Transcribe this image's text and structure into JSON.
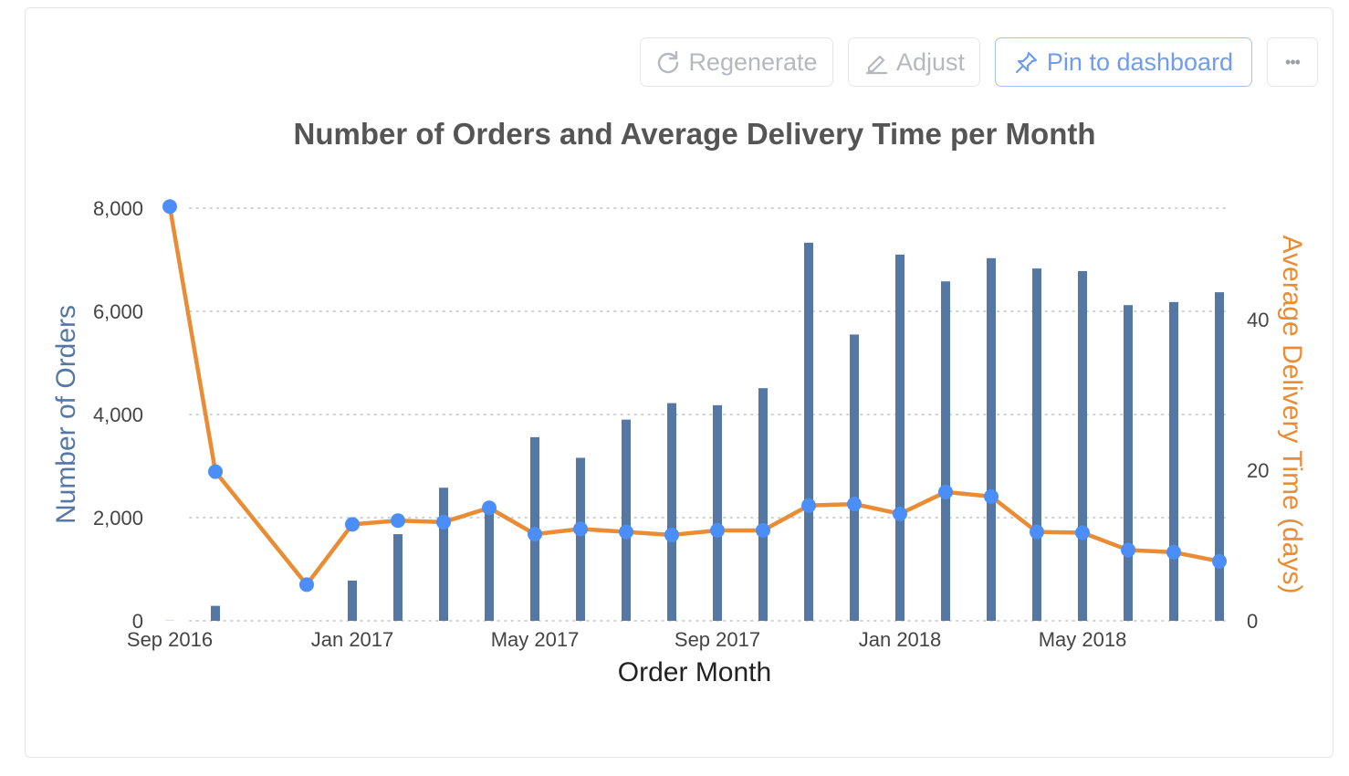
{
  "toolbar": {
    "regenerate_label": "Regenerate",
    "adjust_label": "Adjust",
    "pin_label": "Pin to dashboard",
    "more_label": "•••"
  },
  "colors": {
    "bars": "#5577a4",
    "line": "#e98c33",
    "points": "#4c8ef7",
    "left_axis_title": "#5577a4",
    "right_axis_title": "#e98c33",
    "title": "#555555",
    "grid": "#cfd3d8",
    "tick": "#444444"
  },
  "chart_data": {
    "type": "bar",
    "title": "Number of Orders and Average Delivery Time per Month",
    "xlabel": "Order Month",
    "ylabel": "Number of Orders",
    "y2label": "Average Delivery Time (days)",
    "ylim": [
      0,
      8000
    ],
    "y2lim": [
      0,
      55
    ],
    "grid": true,
    "x_tick_labels": [
      "Sep 2016",
      "Jan 2017",
      "May 2017",
      "Sep 2017",
      "Jan 2018",
      "May 2018"
    ],
    "y_tick_labels": [
      "0",
      "2,000",
      "4,000",
      "6,000",
      "8,000"
    ],
    "y2_tick_labels": [
      "0",
      "20",
      "40"
    ],
    "categories": [
      "2016-09",
      "2016-10",
      "2016-11",
      "2016-12",
      "2017-01",
      "2017-02",
      "2017-03",
      "2017-04",
      "2017-05",
      "2017-06",
      "2017-07",
      "2017-08",
      "2017-09",
      "2017-10",
      "2017-11",
      "2017-12",
      "2018-01",
      "2018-02",
      "2018-03",
      "2018-04",
      "2018-05",
      "2018-06",
      "2018-07",
      "2018-08"
    ],
    "series": [
      {
        "name": "Number of Orders",
        "type": "bar",
        "axis": "left",
        "values": [
          4,
          290,
          null,
          1,
          780,
          1680,
          2580,
          2300,
          3560,
          3160,
          3900,
          4220,
          4180,
          4510,
          7330,
          5550,
          7100,
          6580,
          7030,
          6830,
          6780,
          6120,
          6180,
          6370
        ]
      },
      {
        "name": "Average Delivery Time (days)",
        "type": "line",
        "axis": "right",
        "values": [
          55,
          19.8,
          null,
          4.8,
          12.8,
          13.3,
          13.1,
          15.0,
          11.5,
          12.2,
          11.8,
          11.4,
          12.0,
          12.0,
          15.3,
          15.5,
          14.2,
          17.1,
          16.5,
          11.8,
          11.7,
          9.4,
          9.1,
          7.9
        ]
      }
    ]
  }
}
